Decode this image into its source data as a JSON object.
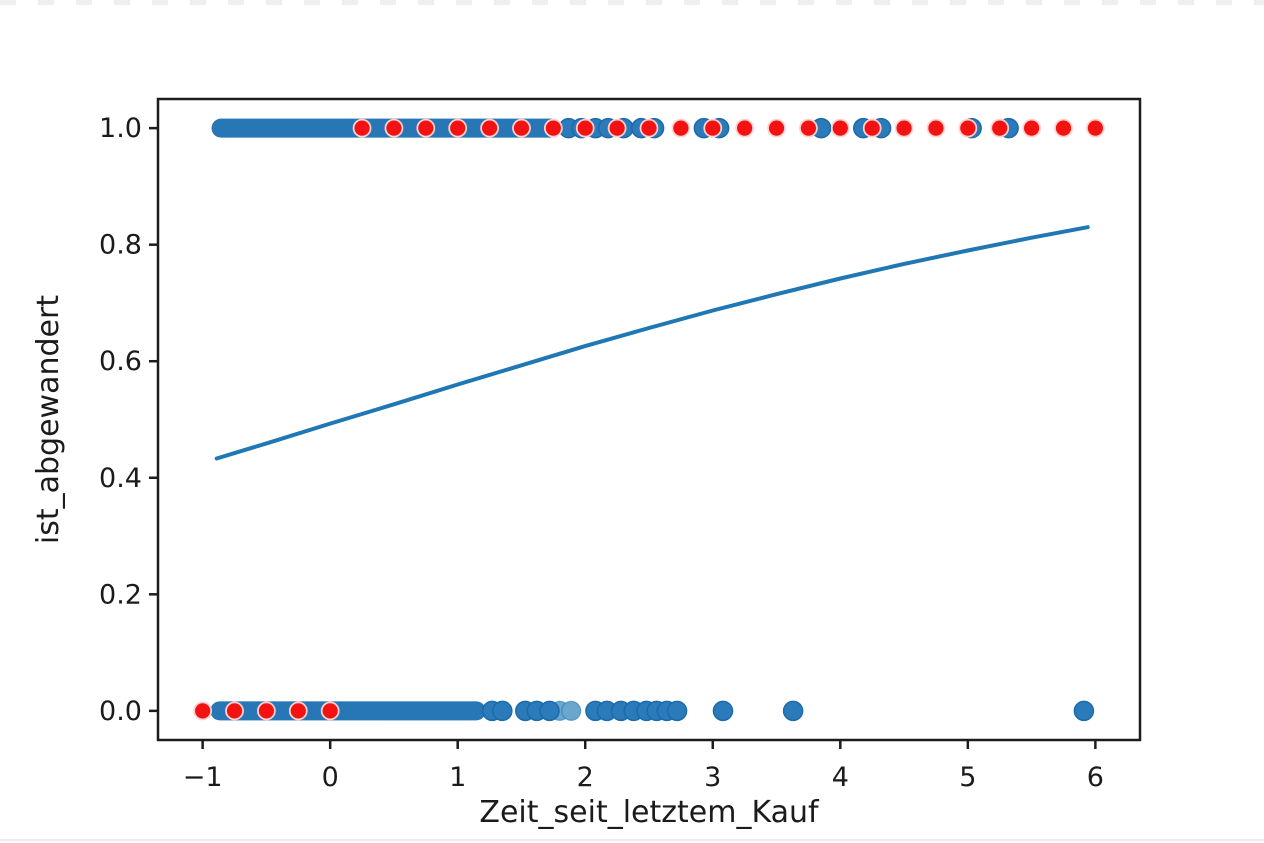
{
  "page": {
    "background": "#ffffff"
  },
  "chart_data": {
    "type": "scatter",
    "title": "",
    "xlabel": "Zeit_seit_letztem_Kauf",
    "ylabel": "ist_abgewandert",
    "xlim": [
      -1.35,
      6.35
    ],
    "ylim": [
      -0.05,
      1.05
    ],
    "xticks": [
      -1,
      0,
      1,
      2,
      3,
      4,
      5,
      6
    ],
    "xtick_labels": [
      "−1",
      "0",
      "1",
      "2",
      "3",
      "4",
      "5",
      "6"
    ],
    "yticks": [
      0.0,
      0.2,
      0.4,
      0.6,
      0.8,
      1.0
    ],
    "ytick_labels": [
      "0.0",
      "0.2",
      "0.4",
      "0.6",
      "0.8",
      "1.0"
    ],
    "grid": false,
    "legend": null,
    "colors": {
      "observations": "#2b7bba",
      "observations_edge": "#1b6aab",
      "observations_light": "#6aa7cf",
      "predictions": "#f31212",
      "predictions_edge": "#ffd0d0",
      "curve": "#1f77b4",
      "axis": "#1c1c1c"
    },
    "series": [
      {
        "name": "beobachtungen_y1_blau",
        "marker": "circle",
        "color": "#2b7bba",
        "y": 1.0,
        "dense_band_x": [
          -0.93,
          1.8
        ],
        "points_x": [
          1.87,
          1.97,
          2.08,
          2.18,
          2.3,
          2.44,
          2.54,
          2.93,
          3.05,
          3.85,
          4.18,
          4.32,
          5.03,
          5.32
        ]
      },
      {
        "name": "beobachtungen_y0_blau",
        "marker": "circle",
        "color": "#2b7bba",
        "y": 0.0,
        "dense_band_x": [
          -0.94,
          1.22
        ],
        "points_x": [
          1.27,
          1.35,
          1.53,
          1.62,
          1.72,
          2.08,
          2.17,
          2.28,
          2.38,
          2.48,
          2.56,
          2.64,
          2.72,
          3.08,
          3.63,
          5.91
        ],
        "points_light_x": [
          1.8,
          1.89
        ]
      },
      {
        "name": "vorhersagen_rot",
        "marker": "circle",
        "color": "#f31212",
        "groups": [
          {
            "y": 0.0,
            "points_x": [
              -1.0,
              -0.75,
              -0.5,
              -0.25,
              0.0
            ]
          },
          {
            "y": 1.0,
            "points_x": [
              0.25,
              0.5,
              0.75,
              1.0,
              1.25,
              1.5,
              1.75,
              2.0,
              2.25,
              2.5,
              2.75,
              3.0,
              3.25,
              3.5,
              3.75,
              4.0,
              4.25,
              4.5,
              4.75,
              5.0,
              5.25,
              5.5,
              5.75,
              6.0
            ]
          }
        ]
      }
    ],
    "curve": {
      "name": "logistische_regressionskurve",
      "color": "#1f77b4",
      "points": [
        [
          -0.89,
          0.433
        ],
        [
          -0.5,
          0.459
        ],
        [
          0.0,
          0.493
        ],
        [
          0.5,
          0.526
        ],
        [
          1.0,
          0.56
        ],
        [
          1.5,
          0.593
        ],
        [
          2.0,
          0.626
        ],
        [
          2.5,
          0.657
        ],
        [
          3.0,
          0.687
        ],
        [
          3.5,
          0.715
        ],
        [
          4.0,
          0.742
        ],
        [
          4.5,
          0.767
        ],
        [
          5.0,
          0.79
        ],
        [
          5.5,
          0.812
        ],
        [
          5.94,
          0.83
        ]
      ]
    }
  }
}
